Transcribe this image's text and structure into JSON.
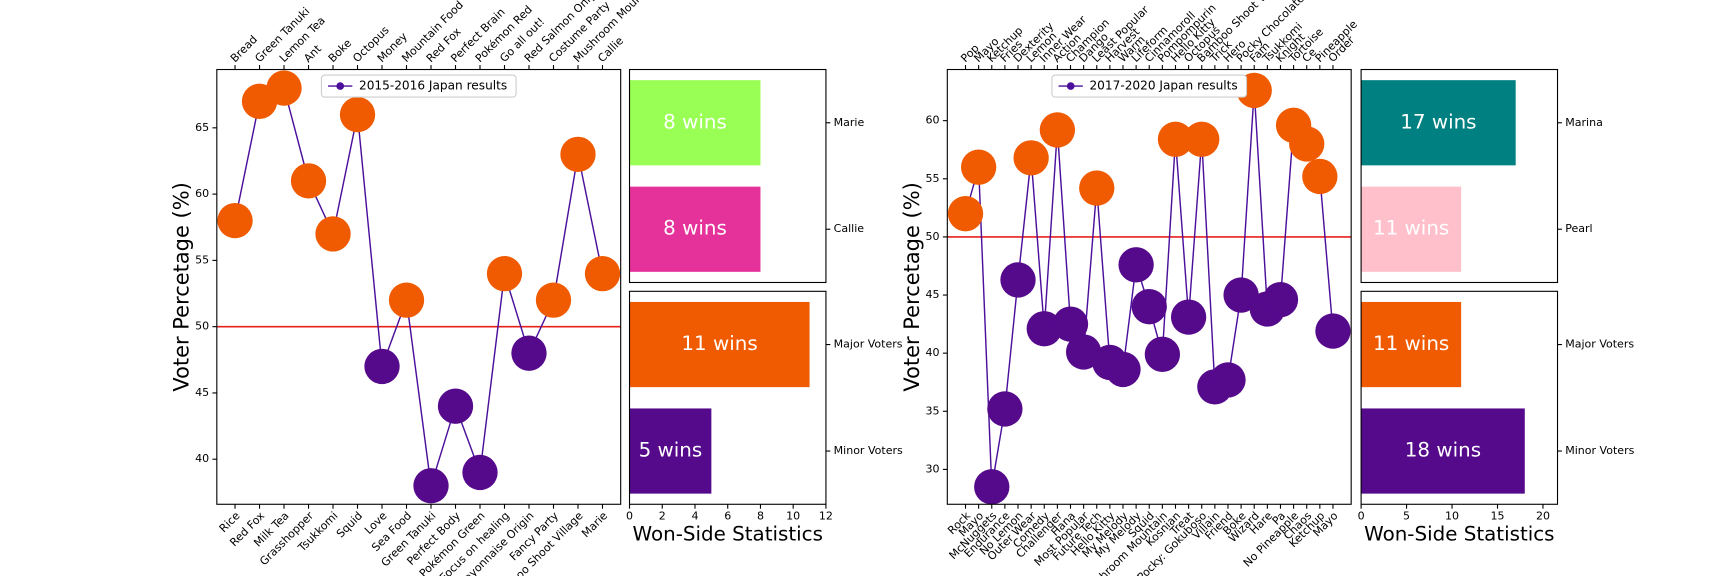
{
  "chart_data": [
    {
      "type": "line",
      "ylabel": "Voter Percetage (%)",
      "categories": [
        "Rice",
        "Red Fox",
        "Milk Tea",
        "Grasshopper",
        "Tsukkomi",
        "Squid",
        "Love",
        "Sea Food",
        "Green Tanuki",
        "Perfect Body",
        "Pokémon Green",
        "Focus on healing",
        "Mayonnaise Origin",
        "Fancy Party",
        "Bamboo Shoot Village",
        "Marie"
      ],
      "top_categories": [
        "Bread",
        "Green Tanuki",
        "Lemon Tea",
        "Ant",
        "Boke",
        "Octopus",
        "Money",
        "Mountain Food",
        "Red Fox",
        "Perfect Brain",
        "Pokémon Red",
        "Go all out!",
        "Red Salmon Onigiri",
        "Costume Party",
        "Mushroom Mountain",
        "Callie"
      ],
      "series": [
        {
          "name": "2015-2016 Japan results",
          "color": "#4b0f9b",
          "values": [
            58,
            67,
            68,
            61,
            57,
            66,
            47,
            52,
            38,
            44,
            39,
            54,
            48,
            52,
            63,
            54
          ]
        }
      ],
      "majority_color": "#f05a00",
      "minority_color": "#55098b",
      "reference_line": 50,
      "reference_color": "#e8201c",
      "ylim": [
        36.6,
        69.4
      ],
      "yticks": [
        40,
        45,
        50,
        55,
        60,
        65
      ],
      "grid": false,
      "legend": "upper center"
    },
    {
      "type": "barh",
      "categories": [
        "Marie",
        "Callie"
      ],
      "values": [
        8,
        8
      ],
      "value_labels": [
        "8 wins",
        "8 wins"
      ],
      "colors": [
        "#99ff55",
        "#e5329a"
      ],
      "xlim": [
        0,
        12
      ]
    },
    {
      "type": "barh",
      "categories": [
        "Major Voters",
        "Minor Voters"
      ],
      "values": [
        11,
        5
      ],
      "value_labels": [
        "11 wins",
        "5 wins"
      ],
      "colors": [
        "#f05a00",
        "#55098b"
      ],
      "xlim": [
        0,
        12
      ],
      "xticks": [
        0,
        2,
        4,
        6,
        8,
        10,
        12
      ],
      "xlabel": "Won-Side Statistics"
    },
    {
      "type": "line",
      "ylabel": "Voter Percetage (%)",
      "categories": [
        "Rock",
        "Mayo",
        "McNuggets",
        "Endurance",
        "No Lemon",
        "Outer Wear",
        "Comedy",
        "Challenger",
        "Hana",
        "Most Popular",
        "Future Tech",
        "Hello Kitty",
        "My Melody",
        "My Melody",
        "Squid",
        "Mushroom Mountain",
        "Kosnian",
        "Treat",
        "Pocky: Gokuboso",
        "Villain",
        "Friend",
        "Boke",
        "Wizard",
        "Hare",
        "Pa",
        "No Pineapple",
        "Chaos",
        "Ketchup",
        "Mayo"
      ],
      "top_categories": [
        "Pop",
        "Mayo",
        "Ketchup",
        "Fries",
        "Dexterity",
        "Lemon",
        "Inner Wear",
        "Action",
        "Champion",
        "Dango",
        "Least Popular",
        "Harvest",
        "Warm",
        "Lifeform",
        "Cinnamoroll",
        "Pompompurin",
        "Hello Kitty",
        "Octopus",
        "Bamboo Shoot Village",
        "Trick",
        "Hero",
        "Pocky Chocolate",
        "Fam",
        "Tsukkomi",
        "Knight",
        "Tortoise",
        "Ce",
        "Pineapple",
        "Order"
      ],
      "series": [
        {
          "name": "2017-2020 Japan results",
          "color": "#4b0f9b",
          "values": [
            52,
            56,
            28.5,
            35.2,
            46.3,
            56.8,
            42.1,
            59.2,
            42.5,
            40.1,
            54.2,
            39.2,
            38.6,
            47.6,
            44.0,
            39.9,
            58.4,
            43.1,
            58.4,
            37.1,
            37.7,
            45.0,
            62.6,
            43.8,
            44.6,
            59.6,
            58.0,
            55.2,
            41.9
          ]
        }
      ],
      "majority_color": "#f05a00",
      "minority_color": "#55098b",
      "reference_line": 50,
      "reference_color": "#e8201c",
      "ylim": [
        27.0,
        64.4
      ],
      "yticks": [
        30,
        35,
        40,
        45,
        50,
        55,
        60
      ],
      "grid": false,
      "legend": "upper center"
    },
    {
      "type": "barh",
      "categories": [
        "Marina",
        "Pearl"
      ],
      "values": [
        17,
        11
      ],
      "value_labels": [
        "17 wins",
        "11 wins"
      ],
      "colors": [
        "#008080",
        "#ffc0cb"
      ],
      "xlim": [
        0,
        21.6
      ]
    },
    {
      "type": "barh",
      "categories": [
        "Major Voters",
        "Minor Voters"
      ],
      "values": [
        11,
        18
      ],
      "value_labels": [
        "11 wins",
        "18 wins"
      ],
      "colors": [
        "#f05a00",
        "#55098b"
      ],
      "xlim": [
        0,
        21.6
      ],
      "xticks": [
        0,
        5,
        10,
        15,
        20
      ],
      "xlabel": "Won-Side Statistics"
    }
  ]
}
